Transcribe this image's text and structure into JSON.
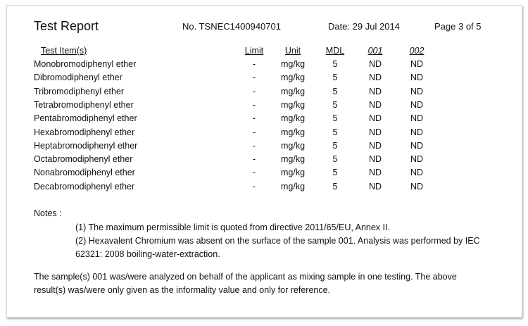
{
  "header": {
    "title": "Test Report",
    "report_no": "No. TSNEC1400940701",
    "date": "Date: 29 Jul 2014",
    "page": "Page 3 of 5"
  },
  "table": {
    "columns": [
      "Test Item(s)",
      "Limit",
      "Unit",
      "MDL",
      "001",
      "002"
    ],
    "rows": [
      [
        "Monobromodiphenyl ether",
        "-",
        "mg/kg",
        "5",
        "ND",
        "ND"
      ],
      [
        "Dibromodiphenyl ether",
        "-",
        "mg/kg",
        "5",
        "ND",
        "ND"
      ],
      [
        "Tribromodiphenyl ether",
        "-",
        "mg/kg",
        "5",
        "ND",
        "ND"
      ],
      [
        "Tetrabromodiphenyl ether",
        "-",
        "mg/kg",
        "5",
        "ND",
        "ND"
      ],
      [
        "Pentabromodiphenyl ether",
        "-",
        "mg/kg",
        "5",
        "ND",
        "ND"
      ],
      [
        "Hexabromodiphenyl ether",
        "-",
        "mg/kg",
        "5",
        "ND",
        "ND"
      ],
      [
        "Heptabromodiphenyl ether",
        "-",
        "mg/kg",
        "5",
        "ND",
        "ND"
      ],
      [
        "Octabromodiphenyl ether",
        "-",
        "mg/kg",
        "5",
        "ND",
        "ND"
      ],
      [
        "Nonabromodiphenyl ether",
        "-",
        "mg/kg",
        "5",
        "ND",
        "ND"
      ],
      [
        "Decabromodiphenyl ether",
        "-",
        "mg/kg",
        "5",
        "ND",
        "ND"
      ]
    ]
  },
  "notes": {
    "label": "Notes :",
    "items": [
      "(1) The maximum permissible limit is quoted from directive 2011/65/EU, Annex II.",
      "(2) Hexavalent Chromium was absent on the surface of the sample 001. Analysis was performed by IEC",
      "62321: 2008 boiling-water-extraction."
    ]
  },
  "footer": {
    "lines": [
      "The sample(s) 001 was/were analyzed on behalf of the applicant as mixing sample in one testing.  The above",
      "result(s) was/were only given as the informality value and only for reference."
    ]
  }
}
